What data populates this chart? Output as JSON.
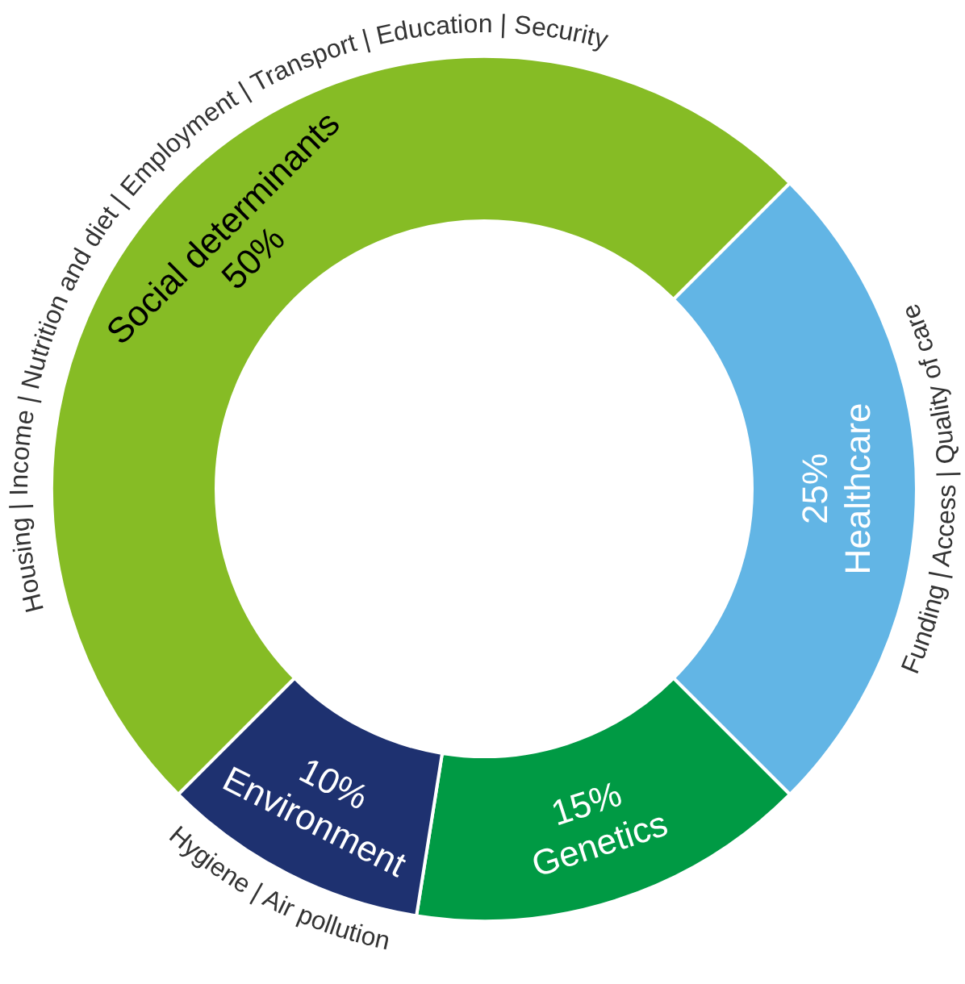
{
  "chart_data": {
    "type": "donut",
    "categories": [
      "Social determinants",
      "Healthcare",
      "Genetics",
      "Environment"
    ],
    "values": [
      50,
      25,
      15,
      10
    ],
    "colors": [
      "#86bc25",
      "#62b5e5",
      "#009a44",
      "#1e3170"
    ],
    "value_labels": [
      "50%",
      "25%",
      "15%",
      "10%"
    ],
    "annotations": [
      "Housing | Income | Nutrition and diet | Employment | Transport | Education | Security",
      "Funding | Access | Quality of care",
      null,
      "Hygiene | Air pollution"
    ]
  }
}
